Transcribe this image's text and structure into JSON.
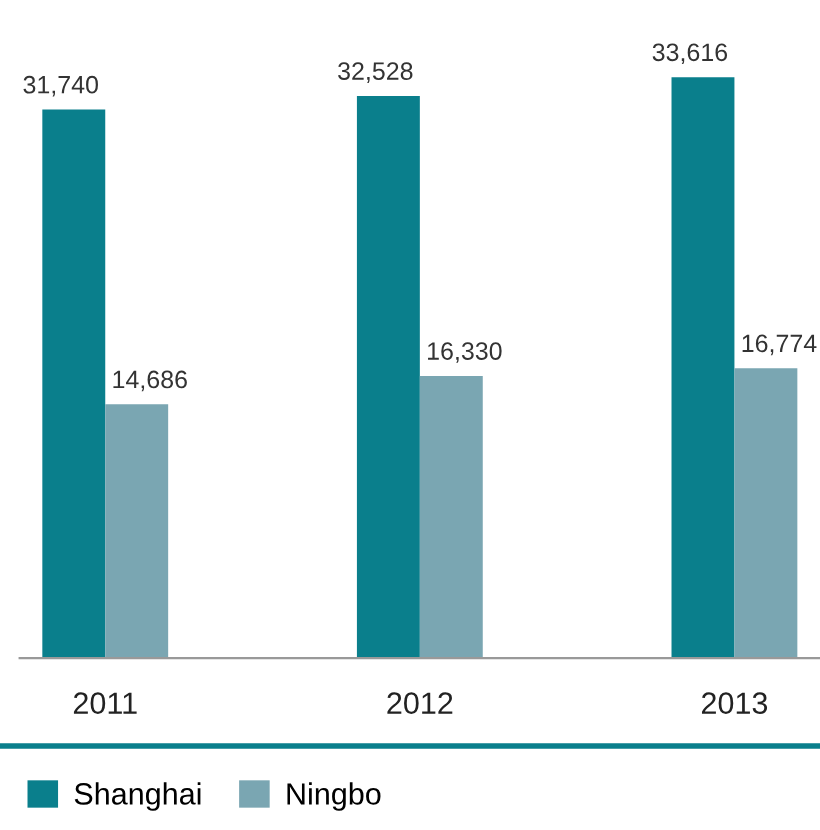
{
  "chart_data": {
    "type": "bar",
    "categories": [
      "2011",
      "2012",
      "2013"
    ],
    "series": [
      {
        "name": "Shanghai",
        "color": "#0a7f8c",
        "values": [
          31740,
          32528,
          33616
        ],
        "value_labels": [
          "31,740",
          "32,528",
          "33,616"
        ]
      },
      {
        "name": "Ningbo",
        "color": "#7aa6b2",
        "values": [
          14686,
          16330,
          16774
        ],
        "value_labels": [
          "14,686",
          "16,330",
          "16,774"
        ]
      }
    ],
    "legend": "bottom",
    "grid": false
  }
}
